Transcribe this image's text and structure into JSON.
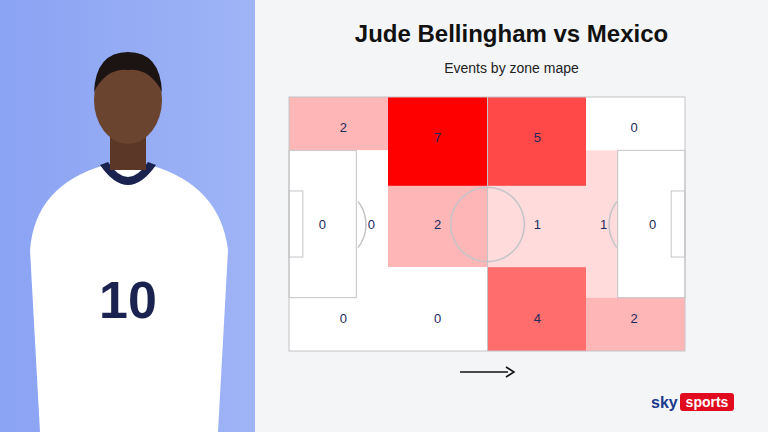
{
  "chart_data": {
    "type": "heatmap",
    "title": "Jude Bellingham vs Mexico",
    "subtitle": "Events by zone mape",
    "color": "#ff0000",
    "data_labels": true,
    "zones": {
      "top": [
        2,
        7,
        5,
        0
      ],
      "middle": [
        0,
        0,
        2,
        1,
        1,
        0
      ],
      "bottom": [
        0,
        0,
        4,
        2
      ]
    },
    "shirt_number": "10",
    "logo": {
      "brand": "sky",
      "product": "sports"
    }
  }
}
